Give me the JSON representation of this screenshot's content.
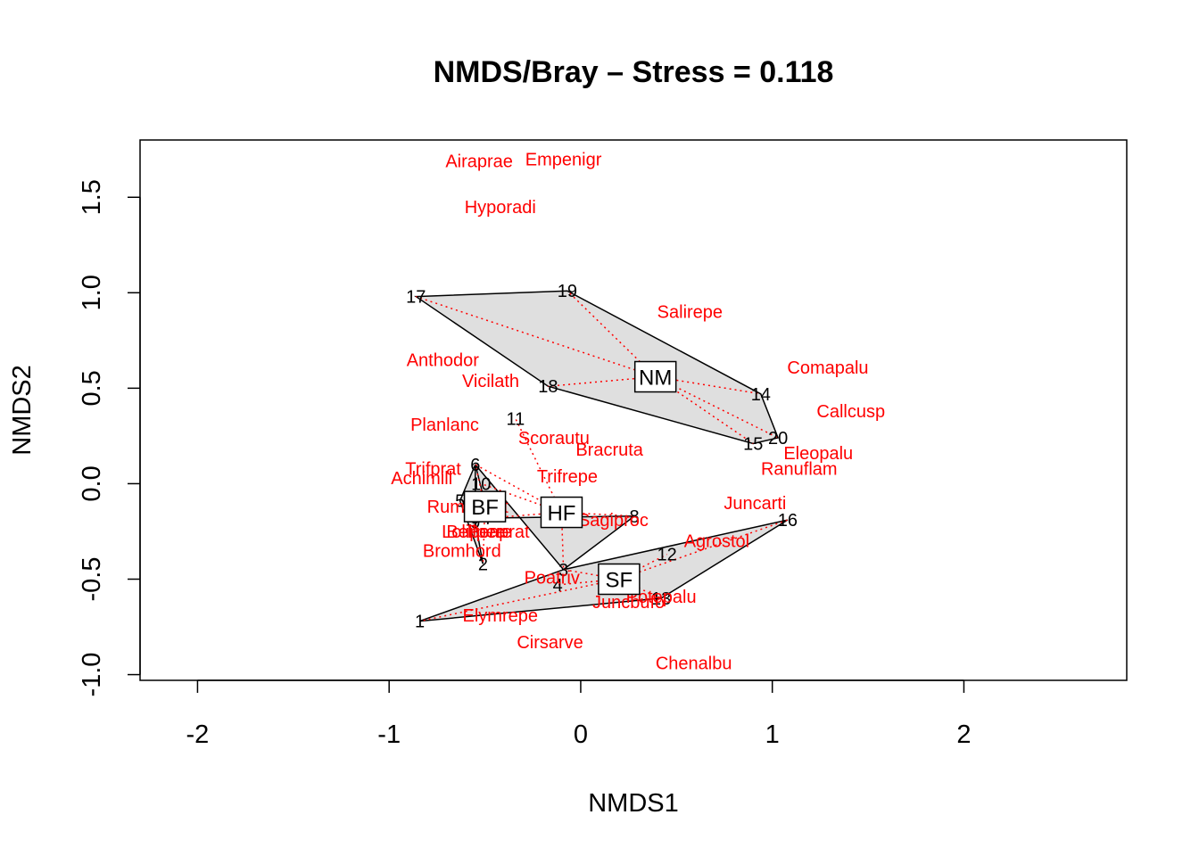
{
  "colors": {
    "species": "#ff0000",
    "hull_fill": "#dddddd",
    "hull_stroke": "#000000",
    "spider": "#ff0000"
  },
  "chart_data": {
    "type": "scatter",
    "title": "NMDS/Bray – Stress = 0.118",
    "xlabel": "NMDS1",
    "ylabel": "NMDS2",
    "xlim": [
      -2.3,
      2.85
    ],
    "ylim": [
      -1.03,
      1.8
    ],
    "xticks": [
      -2,
      -1,
      0,
      1,
      2
    ],
    "yticks": [
      -1.0,
      -0.5,
      0.0,
      0.5,
      1.0,
      1.5
    ],
    "xtick_labels": [
      "-2",
      "-1",
      "0",
      "1",
      "2"
    ],
    "ytick_labels": [
      "-1.0",
      "-0.5",
      "0.0",
      "0.5",
      "1.0",
      "1.5"
    ],
    "grid": false,
    "sites": [
      {
        "label": "1",
        "x": -0.84,
        "y": -0.72
      },
      {
        "label": "2",
        "x": -0.51,
        "y": -0.42
      },
      {
        "label": "3",
        "x": -0.09,
        "y": -0.45
      },
      {
        "label": "4",
        "x": -0.12,
        "y": -0.53
      },
      {
        "label": "5",
        "x": -0.63,
        "y": -0.09
      },
      {
        "label": "6",
        "x": -0.55,
        "y": 0.1
      },
      {
        "label": "7",
        "x": -0.48,
        "y": -0.18
      },
      {
        "label": "8",
        "x": 0.28,
        "y": -0.17
      },
      {
        "label": "9",
        "x": -0.55,
        "y": -0.2
      },
      {
        "label": "10",
        "x": -0.52,
        "y": 0.0
      },
      {
        "label": "11",
        "x": -0.34,
        "y": 0.34
      },
      {
        "label": "12",
        "x": 0.45,
        "y": -0.37
      },
      {
        "label": "13",
        "x": 0.42,
        "y": -0.6
      },
      {
        "label": "14",
        "x": 0.94,
        "y": 0.47
      },
      {
        "label": "15",
        "x": 0.9,
        "y": 0.21
      },
      {
        "label": "16",
        "x": 1.08,
        "y": -0.19
      },
      {
        "label": "17",
        "x": -0.86,
        "y": 0.98
      },
      {
        "label": "18",
        "x": -0.17,
        "y": 0.51
      },
      {
        "label": "19",
        "x": -0.07,
        "y": 1.01
      },
      {
        "label": "20",
        "x": 1.03,
        "y": 0.24
      }
    ],
    "species": [
      {
        "label": "Airaprae",
        "x": -0.53,
        "y": 1.69
      },
      {
        "label": "Empenigr",
        "x": -0.09,
        "y": 1.7
      },
      {
        "label": "Hyporadi",
        "x": -0.42,
        "y": 1.45
      },
      {
        "label": "Salirepe",
        "x": 0.57,
        "y": 0.9
      },
      {
        "label": "Anthodor",
        "x": -0.72,
        "y": 0.65
      },
      {
        "label": "Comapalu",
        "x": 1.29,
        "y": 0.61
      },
      {
        "label": "Vicilath",
        "x": -0.47,
        "y": 0.54
      },
      {
        "label": "Callcusp",
        "x": 1.41,
        "y": 0.38
      },
      {
        "label": "Planlanc",
        "x": -0.71,
        "y": 0.31
      },
      {
        "label": "Scorautu",
        "x": -0.14,
        "y": 0.24
      },
      {
        "label": "Bracruta",
        "x": 0.15,
        "y": 0.18
      },
      {
        "label": "Eleopalu",
        "x": 1.24,
        "y": 0.16
      },
      {
        "label": "Ranuflam",
        "x": 1.14,
        "y": 0.08
      },
      {
        "label": "Trifprat",
        "x": -0.77,
        "y": 0.08
      },
      {
        "label": "Trifrepe",
        "x": -0.07,
        "y": 0.04
      },
      {
        "label": "Achimill",
        "x": -0.83,
        "y": 0.03
      },
      {
        "label": "Juncarti",
        "x": 0.91,
        "y": -0.1
      },
      {
        "label": "Rumeacet",
        "x": -0.59,
        "y": -0.12
      },
      {
        "label": "Sagiproc",
        "x": 0.17,
        "y": -0.19
      },
      {
        "label": "Agrostol",
        "x": 0.71,
        "y": -0.3
      },
      {
        "label": "Lolipere",
        "x": -0.56,
        "y": -0.25
      },
      {
        "label": "Poaprat",
        "x": -0.43,
        "y": -0.25
      },
      {
        "label": "Bellpere",
        "x": -0.53,
        "y": -0.25
      },
      {
        "label": "Bromhord",
        "x": -0.62,
        "y": -0.35
      },
      {
        "label": "Poatriv",
        "x": -0.15,
        "y": -0.49
      },
      {
        "label": "Potepalu",
        "x": 0.42,
        "y": -0.59
      },
      {
        "label": "Juncbufo",
        "x": 0.25,
        "y": -0.62
      },
      {
        "label": "Elymrepe",
        "x": -0.42,
        "y": -0.69
      },
      {
        "label": "Cirsarve",
        "x": -0.16,
        "y": -0.83
      },
      {
        "label": "Chenalbu",
        "x": 0.59,
        "y": -0.94
      }
    ],
    "groups": [
      {
        "label": "BF",
        "centroid": [
          -0.5,
          -0.12
        ],
        "hull": [
          "2",
          "5",
          "6",
          "9"
        ],
        "members": [
          "2",
          "5",
          "6",
          "9"
        ]
      },
      {
        "label": "HF",
        "centroid": [
          -0.1,
          -0.15
        ],
        "hull": [
          "6",
          "7",
          "8",
          "3"
        ],
        "members": [
          "3",
          "6",
          "7",
          "8",
          "10",
          "11"
        ]
      },
      {
        "label": "NM",
        "centroid": [
          0.39,
          0.56
        ],
        "hull": [
          "17",
          "19",
          "14",
          "20",
          "15",
          "18"
        ],
        "members": [
          "14",
          "15",
          "17",
          "18",
          "19",
          "20"
        ]
      },
      {
        "label": "SF",
        "centroid": [
          0.2,
          -0.5
        ],
        "hull": [
          "1",
          "3",
          "16",
          "13"
        ],
        "members": [
          "1",
          "3",
          "4",
          "12",
          "13",
          "16"
        ]
      }
    ]
  }
}
